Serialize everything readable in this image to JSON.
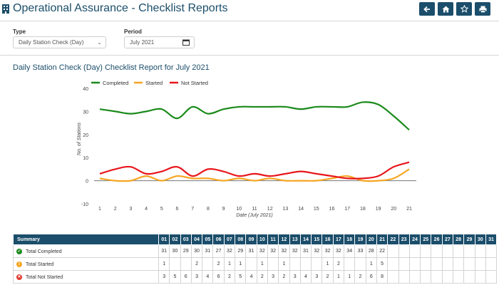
{
  "header": {
    "title": "Operational Assurance - Checklist Reports",
    "icons": [
      "building-icon",
      "back-arrow-icon",
      "home-icon",
      "star-icon",
      "print-icon"
    ]
  },
  "filters": {
    "type_label": "Type",
    "type_value": "Daily Station Check (Day)",
    "period_label": "Period",
    "period_value": "July 2021"
  },
  "report": {
    "title": "Daily Station Check (Day) Checklist Report for July 2021"
  },
  "chart_data": {
    "type": "line",
    "title": "",
    "xlabel": "Date (July 2021)",
    "ylabel": "No. of Stations",
    "x": [
      1,
      2,
      3,
      4,
      5,
      6,
      7,
      8,
      9,
      10,
      11,
      12,
      13,
      14,
      15,
      16,
      17,
      18,
      19,
      20,
      21
    ],
    "xlim": [
      1,
      21
    ],
    "ylim": [
      -10,
      40
    ],
    "yticks": [
      -10,
      0,
      10,
      20,
      30,
      40
    ],
    "legend_position": "top-left",
    "series": [
      {
        "name": "Completed",
        "color": "#1a8a1a",
        "values": [
          31,
          30,
          29,
          30,
          31,
          27,
          32,
          29,
          31,
          32,
          32,
          32,
          32,
          31,
          32,
          32,
          32,
          34,
          33,
          28,
          22
        ]
      },
      {
        "name": "Started",
        "color": "#f5a623",
        "values": [
          1,
          0,
          0,
          2,
          0,
          2,
          1,
          1,
          0,
          1,
          0,
          1,
          0,
          0,
          0,
          1,
          2,
          0,
          0,
          1,
          5
        ]
      },
      {
        "name": "Not Started",
        "color": "#e8161b",
        "values": [
          3,
          5,
          6,
          3,
          4,
          6,
          2,
          5,
          4,
          2,
          3,
          2,
          3,
          4,
          3,
          2,
          1,
          1,
          2,
          6,
          8
        ]
      }
    ]
  },
  "summary": {
    "header_label": "Summary",
    "days": [
      "01",
      "02",
      "03",
      "04",
      "05",
      "06",
      "07",
      "08",
      "09",
      "10",
      "11",
      "12",
      "13",
      "14",
      "15",
      "16",
      "17",
      "18",
      "19",
      "20",
      "21",
      "22",
      "23",
      "24",
      "25",
      "26",
      "27",
      "28",
      "29",
      "30",
      "31"
    ],
    "rows": [
      {
        "label": "Total Completed",
        "icon": "check-circle-icon",
        "color": "#1a8a1a",
        "glyph": "✓",
        "values": [
          "31",
          "30",
          "29",
          "30",
          "31",
          "27",
          "32",
          "29",
          "31",
          "32",
          "32",
          "32",
          "32",
          "31",
          "32",
          "32",
          "32",
          "34",
          "33",
          "28",
          "22",
          "",
          "",
          "",
          "",
          "",
          "",
          "",
          "",
          "",
          ""
        ]
      },
      {
        "label": "Total Started",
        "icon": "exclamation-circle-icon",
        "color": "#f5a623",
        "glyph": "!",
        "values": [
          "1",
          "",
          "",
          "2",
          "",
          "2",
          "1",
          "1",
          "",
          "1",
          "",
          "1",
          "",
          "",
          "",
          "1",
          "2",
          "",
          "",
          "1",
          "5",
          "",
          "",
          "",
          "",
          "",
          "",
          "",
          "",
          "",
          ""
        ]
      },
      {
        "label": "Total Not Started",
        "icon": "x-circle-icon",
        "color": "#e03a2f",
        "glyph": "✕",
        "values": [
          "3",
          "5",
          "6",
          "3",
          "4",
          "6",
          "2",
          "5",
          "4",
          "2",
          "3",
          "2",
          "3",
          "4",
          "3",
          "2",
          "1",
          "1",
          "2",
          "6",
          "8",
          "",
          "",
          "",
          "",
          "",
          "",
          "",
          "",
          "",
          ""
        ]
      }
    ]
  }
}
